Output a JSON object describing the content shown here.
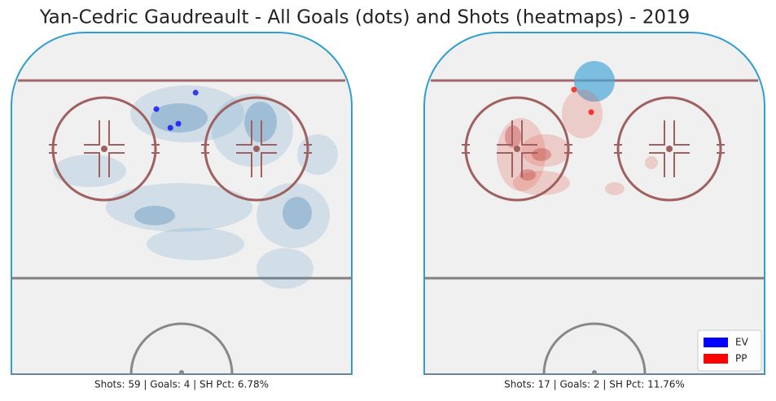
{
  "title": "Yan-Cedric Gaudreault - All Goals (dots) and Shots (heatmaps) - 2019",
  "chart_data": [
    {
      "type": "scatter",
      "caption": "Shots: 59 | Goals: 4 | SH Pct: 6.78%",
      "xlim": [
        -42.5,
        42.5
      ],
      "ylim": [
        0,
        100
      ],
      "series": [
        {
          "name": "EV",
          "color": "#0000ff",
          "x": [
            -6.3,
            3.5,
            -2.8,
            -0.8
          ],
          "values": [
            77.6,
            82.4,
            72.1,
            73.3
          ]
        }
      ]
    },
    {
      "type": "scatter",
      "caption": "Shots: 17 | Goals: 2 | SH Pct: 11.76%",
      "xlim": [
        -42.5,
        42.5
      ],
      "ylim": [
        0,
        100
      ],
      "legend": "lower right",
      "series": [
        {
          "name": "EV",
          "color": "#0000ff",
          "x": [],
          "values": []
        },
        {
          "name": "PP",
          "color": "#ff0000",
          "x": [
            -5.1,
            -0.8
          ],
          "values": [
            83.3,
            76.7
          ]
        }
      ]
    }
  ]
}
